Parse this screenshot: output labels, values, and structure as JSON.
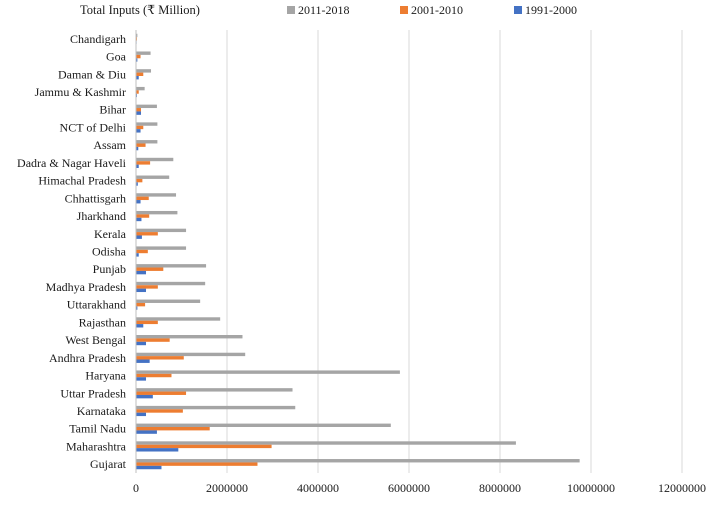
{
  "chart_data": {
    "type": "bar",
    "orientation": "horizontal",
    "title": "Total Inputs (₹ Million)",
    "xlabel": "",
    "ylabel": "",
    "xlim": [
      0,
      12000000
    ],
    "x_ticks": [
      0,
      2000000,
      4000000,
      6000000,
      8000000,
      10000000,
      12000000
    ],
    "x_tick_labels": [
      "0",
      "2000000",
      "4000000",
      "6000000",
      "8000000",
      "10000000",
      "12000000"
    ],
    "grid": "vertical",
    "legend_position": "top",
    "categories": [
      "Chandigarh",
      "Goa",
      "Daman & Diu",
      "Jammu & Kashmir",
      "Bihar",
      "NCT of Delhi",
      "Assam",
      "Dadra & Nagar Haveli",
      "Himachal Pradesh",
      "Chhattisgarh",
      "Jharkhand",
      "Kerala",
      "Odisha",
      "Punjab",
      "Madhya Pradesh",
      "Uttarakhand",
      "Rajasthan",
      "West Bengal",
      "Andhra Pradesh",
      "Haryana",
      "Uttar Pradesh",
      "Karnataka",
      "Tamil Nadu",
      "Maharashtra",
      "Gujarat"
    ],
    "series": [
      {
        "name": "2011-2018",
        "color": "#a5a5a5",
        "values": [
          30000,
          320000,
          330000,
          190000,
          460000,
          470000,
          470000,
          820000,
          730000,
          880000,
          910000,
          1100000,
          1100000,
          1540000,
          1520000,
          1410000,
          1850000,
          2340000,
          2400000,
          5800000,
          3440000,
          3500000,
          5600000,
          8350000,
          9750000
        ]
      },
      {
        "name": "2001-2010",
        "color": "#ed7d31",
        "values": [
          20000,
          100000,
          160000,
          60000,
          110000,
          160000,
          210000,
          310000,
          140000,
          280000,
          290000,
          480000,
          260000,
          600000,
          480000,
          200000,
          480000,
          740000,
          1050000,
          780000,
          1100000,
          1030000,
          1620000,
          2980000,
          2670000
        ]
      },
      {
        "name": "1991-2000",
        "color": "#4472c4",
        "values": [
          5000,
          30000,
          60000,
          20000,
          110000,
          100000,
          50000,
          60000,
          40000,
          100000,
          120000,
          130000,
          60000,
          220000,
          220000,
          30000,
          160000,
          220000,
          300000,
          220000,
          370000,
          220000,
          460000,
          930000,
          560000
        ]
      }
    ]
  }
}
